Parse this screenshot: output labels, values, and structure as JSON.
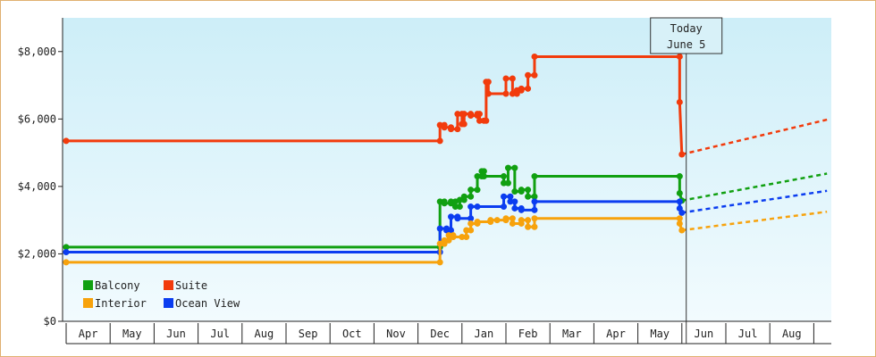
{
  "chart_data": {
    "type": "line",
    "title": "",
    "xlabel": "",
    "ylabel": "",
    "ylim": [
      0,
      9000
    ],
    "yticks": [
      "$0",
      "$2,000",
      "$4,000",
      "$6,000",
      "$8,000"
    ],
    "ytick_values": [
      0,
      2000,
      4000,
      6000,
      8000
    ],
    "month_labels": [
      "Apr",
      "May",
      "Jun",
      "Jul",
      "Aug",
      "Sep",
      "Oct",
      "Nov",
      "Dec",
      "Jan",
      "Feb",
      "Mar",
      "Apr",
      "May",
      "Jun",
      "Jul",
      "Aug"
    ],
    "x_unit": "month index (0 = start of Apr)",
    "today": {
      "line1": "Today",
      "line2": "June 5",
      "x": 14.1
    },
    "grid": false,
    "legend_position": "bottom-left",
    "colors": {
      "Balcony": "#11a011",
      "Suite": "#f23b0c",
      "Interior": "#f7a20c",
      "Ocean View": "#0b3df0"
    },
    "series": [
      {
        "name": "Suite",
        "color": "#f23b0c",
        "points": [
          [
            0.0,
            5350
          ],
          [
            8.5,
            5350
          ],
          [
            8.5,
            5820
          ],
          [
            8.6,
            5820
          ],
          [
            8.6,
            5750
          ],
          [
            8.75,
            5750
          ],
          [
            8.75,
            5700
          ],
          [
            8.9,
            5700
          ],
          [
            8.9,
            6150
          ],
          [
            9.0,
            6150
          ],
          [
            9.0,
            5850
          ],
          [
            9.05,
            5850
          ],
          [
            9.05,
            6150
          ],
          [
            9.2,
            6150
          ],
          [
            9.2,
            6100
          ],
          [
            9.35,
            6100
          ],
          [
            9.35,
            6150
          ],
          [
            9.4,
            6150
          ],
          [
            9.4,
            5950
          ],
          [
            9.5,
            5950
          ],
          [
            9.5,
            5950
          ],
          [
            9.55,
            5950
          ],
          [
            9.55,
            7100
          ],
          [
            9.6,
            7100
          ],
          [
            9.6,
            6750
          ],
          [
            10.0,
            6750
          ],
          [
            10.0,
            7200
          ],
          [
            10.15,
            7200
          ],
          [
            10.15,
            6750
          ],
          [
            10.25,
            6750
          ],
          [
            10.25,
            6850
          ],
          [
            10.35,
            6850
          ],
          [
            10.35,
            6900
          ],
          [
            10.5,
            6900
          ],
          [
            10.5,
            7300
          ],
          [
            10.65,
            7300
          ],
          [
            10.65,
            7850
          ],
          [
            13.95,
            7850
          ],
          [
            13.95,
            6500
          ],
          [
            14.0,
            4950
          ]
        ],
        "forecast": [
          [
            14.0,
            4950
          ],
          [
            17.3,
            5980
          ]
        ]
      },
      {
        "name": "Balcony",
        "color": "#11a011",
        "points": [
          [
            0.0,
            2200
          ],
          [
            8.5,
            2200
          ],
          [
            8.5,
            3550
          ],
          [
            8.6,
            3550
          ],
          [
            8.6,
            3500
          ],
          [
            8.75,
            3500
          ],
          [
            8.75,
            3550
          ],
          [
            8.85,
            3550
          ],
          [
            8.85,
            3400
          ],
          [
            8.95,
            3400
          ],
          [
            8.95,
            3600
          ],
          [
            9.05,
            3600
          ],
          [
            9.05,
            3700
          ],
          [
            9.2,
            3700
          ],
          [
            9.2,
            3900
          ],
          [
            9.35,
            3900
          ],
          [
            9.35,
            4300
          ],
          [
            9.45,
            4300
          ],
          [
            9.45,
            4450
          ],
          [
            9.5,
            4450
          ],
          [
            9.5,
            4300
          ],
          [
            9.95,
            4300
          ],
          [
            9.95,
            4100
          ],
          [
            10.05,
            4100
          ],
          [
            10.05,
            4550
          ],
          [
            10.2,
            4550
          ],
          [
            10.2,
            3850
          ],
          [
            10.35,
            3850
          ],
          [
            10.35,
            3900
          ],
          [
            10.5,
            3900
          ],
          [
            10.5,
            3700
          ],
          [
            10.65,
            3700
          ],
          [
            10.65,
            4300
          ],
          [
            13.95,
            4300
          ],
          [
            13.95,
            3800
          ],
          [
            14.0,
            3580
          ]
        ],
        "forecast": [
          [
            14.0,
            3580
          ],
          [
            17.3,
            4380
          ]
        ]
      },
      {
        "name": "Ocean View",
        "color": "#0b3df0",
        "points": [
          [
            0.0,
            2050
          ],
          [
            8.5,
            2050
          ],
          [
            8.5,
            2750
          ],
          [
            8.65,
            2750
          ],
          [
            8.65,
            2700
          ],
          [
            8.75,
            2700
          ],
          [
            8.75,
            3100
          ],
          [
            8.9,
            3100
          ],
          [
            8.9,
            3050
          ],
          [
            9.2,
            3050
          ],
          [
            9.2,
            3400
          ],
          [
            9.35,
            3400
          ],
          [
            9.35,
            3400
          ],
          [
            9.95,
            3400
          ],
          [
            9.95,
            3700
          ],
          [
            10.1,
            3700
          ],
          [
            10.1,
            3550
          ],
          [
            10.2,
            3550
          ],
          [
            10.2,
            3350
          ],
          [
            10.35,
            3350
          ],
          [
            10.35,
            3300
          ],
          [
            10.65,
            3300
          ],
          [
            10.65,
            3550
          ],
          [
            13.95,
            3550
          ],
          [
            13.95,
            3350
          ],
          [
            14.0,
            3220
          ]
        ],
        "forecast": [
          [
            14.0,
            3220
          ],
          [
            17.3,
            3870
          ]
        ]
      },
      {
        "name": "Interior",
        "color": "#f7a20c",
        "points": [
          [
            0.0,
            1750
          ],
          [
            8.5,
            1750
          ],
          [
            8.5,
            2300
          ],
          [
            8.6,
            2300
          ],
          [
            8.6,
            2400
          ],
          [
            8.7,
            2400
          ],
          [
            8.7,
            2550
          ],
          [
            8.8,
            2550
          ],
          [
            8.8,
            2500
          ],
          [
            9.0,
            2500
          ],
          [
            9.0,
            2500
          ],
          [
            9.1,
            2500
          ],
          [
            9.1,
            2700
          ],
          [
            9.2,
            2700
          ],
          [
            9.2,
            2900
          ],
          [
            9.35,
            2900
          ],
          [
            9.35,
            2950
          ],
          [
            9.65,
            2950
          ],
          [
            9.65,
            3000
          ],
          [
            9.8,
            3000
          ],
          [
            9.8,
            3000
          ],
          [
            10.0,
            3000
          ],
          [
            10.0,
            3050
          ],
          [
            10.15,
            3050
          ],
          [
            10.15,
            2900
          ],
          [
            10.35,
            2900
          ],
          [
            10.35,
            3000
          ],
          [
            10.5,
            3000
          ],
          [
            10.5,
            2800
          ],
          [
            10.65,
            2800
          ],
          [
            10.65,
            3050
          ],
          [
            13.95,
            3050
          ],
          [
            13.95,
            2900
          ],
          [
            14.0,
            2700
          ]
        ],
        "forecast": [
          [
            14.0,
            2700
          ],
          [
            17.3,
            3250
          ]
        ]
      }
    ],
    "legend": [
      {
        "name": "Balcony",
        "color": "#11a011"
      },
      {
        "name": "Suite",
        "color": "#f23b0c"
      },
      {
        "name": "Interior",
        "color": "#f7a20c"
      },
      {
        "name": "Ocean View",
        "color": "#0b3df0"
      }
    ]
  }
}
